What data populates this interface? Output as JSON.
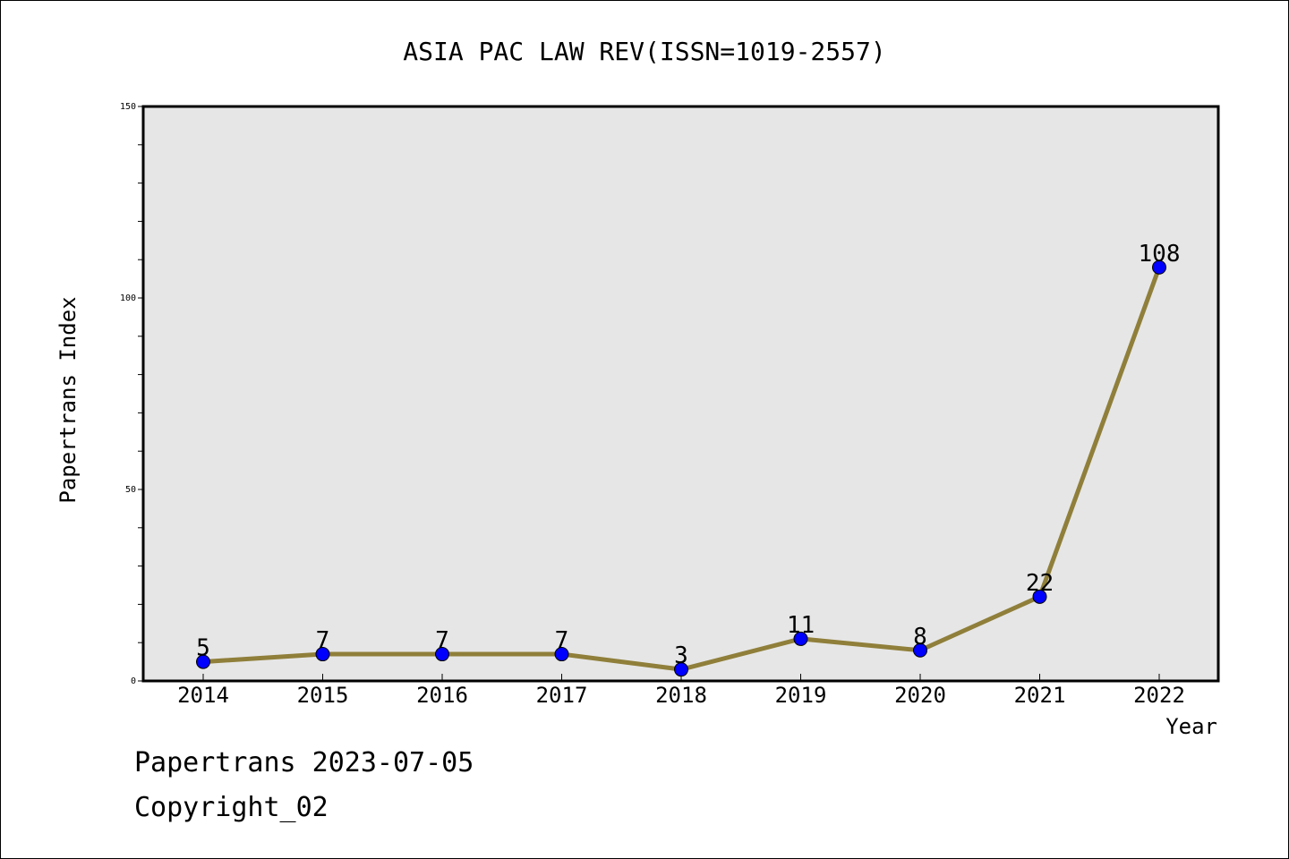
{
  "chart_data": {
    "type": "line",
    "title": "ASIA PAC LAW REV(ISSN=1019-2557)",
    "xlabel": "Year",
    "ylabel": "Papertrans Index",
    "categories": [
      "2014",
      "2015",
      "2016",
      "2017",
      "2018",
      "2019",
      "2020",
      "2021",
      "2022"
    ],
    "values": [
      5,
      7,
      7,
      7,
      3,
      11,
      8,
      22,
      108
    ],
    "ylim": [
      0,
      150
    ],
    "yticks": [
      0,
      50,
      100,
      150
    ],
    "yticks_labels": [
      "0",
      "50",
      "100",
      "150"
    ],
    "grid": false,
    "data_labels": true,
    "colors": {
      "line": "#8f7f3a",
      "marker": "#0000ff",
      "plot_background": "#e6e6e6"
    }
  },
  "footer": {
    "line1": "Papertrans 2023-07-05",
    "line2": "Copyright_02"
  }
}
